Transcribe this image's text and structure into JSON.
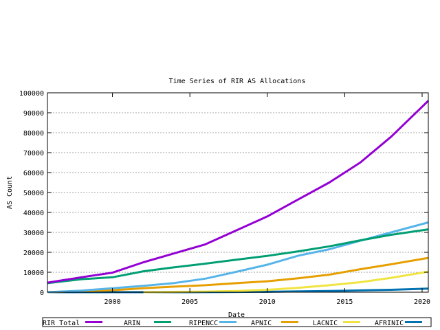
{
  "chart_data": {
    "type": "line",
    "title": "Time Series of RIR AS Allocations",
    "xlabel": "Date",
    "ylabel": "AS Count",
    "xlim": [
      1995.8,
      2020.4
    ],
    "ylim": [
      0,
      100000
    ],
    "xticks": [
      2000,
      2005,
      2010,
      2015,
      2020
    ],
    "xtick_labels": [
      "2000",
      "2005",
      "2010",
      "2015",
      "2020"
    ],
    "yticks": [
      0,
      10000,
      20000,
      30000,
      40000,
      50000,
      60000,
      70000,
      80000,
      90000,
      100000
    ],
    "ytick_labels": [
      "0",
      "10000",
      "20000",
      "30000",
      "40000",
      "50000",
      "60000",
      "70000",
      "80000",
      "90000",
      "100000"
    ],
    "grid": "horizontal dashed",
    "legend_placement": "bottom",
    "series": [
      {
        "name": "RIR Total",
        "color": "#9400d3",
        "x": [
          1995.8,
          1998,
          2000,
          2002,
          2004,
          2006,
          2008,
          2010,
          2012,
          2014,
          2016,
          2018,
          2020.4
        ],
        "y": [
          4800,
          7500,
          9800,
          15000,
          19500,
          24000,
          31000,
          38000,
          46500,
          55000,
          65000,
          78000,
          96000
        ]
      },
      {
        "name": "ARIN",
        "color": "#009e73",
        "x": [
          1995.8,
          1998,
          2000,
          2002,
          2004,
          2006,
          2008,
          2010,
          2012,
          2014,
          2016,
          2018,
          2020.4
        ],
        "y": [
          4500,
          6500,
          7500,
          10500,
          12500,
          14300,
          16300,
          18200,
          20500,
          23000,
          26000,
          28800,
          31500
        ]
      },
      {
        "name": "RIPENCC",
        "color": "#56b4e9",
        "x": [
          1995.8,
          1998,
          2000,
          2002,
          2004,
          2006,
          2008,
          2010,
          2012,
          2014,
          2016,
          2018,
          2020.4
        ],
        "y": [
          0,
          800,
          2000,
          3200,
          4600,
          6800,
          10200,
          13800,
          18300,
          21500,
          25800,
          30000,
          35000
        ]
      },
      {
        "name": "APNIC",
        "color": "#e69f00",
        "x": [
          1995.8,
          1998,
          2000,
          2002,
          2004,
          2006,
          2008,
          2010,
          2012,
          2014,
          2016,
          2018,
          2020.4
        ],
        "y": [
          0,
          600,
          1000,
          2000,
          2800,
          3500,
          4500,
          5500,
          7000,
          8800,
          11500,
          14000,
          17200
        ]
      },
      {
        "name": "LACNIC",
        "color": "#f0e442",
        "x": [
          2002,
          2006,
          2008,
          2010,
          2012,
          2014,
          2016,
          2018,
          2020.4
        ],
        "y": [
          0,
          300,
          600,
          1200,
          2200,
          3500,
          5000,
          7200,
          10300
        ]
      },
      {
        "name": "AFRINIC",
        "color": "#0072b2",
        "x": [
          1995.8,
          2005,
          2010,
          2014,
          2016,
          2018,
          2020.4
        ],
        "y": [
          0,
          0,
          200,
          600,
          900,
          1200,
          1800
        ]
      }
    ]
  }
}
